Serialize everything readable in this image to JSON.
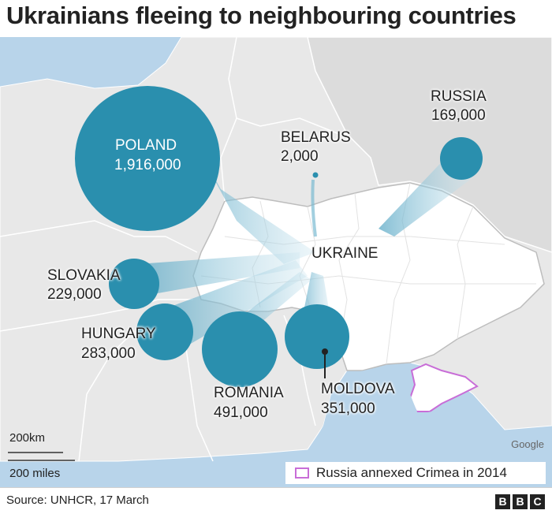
{
  "title": "Ukrainians fleeing to neighbouring countries",
  "countries": [
    {
      "key": "poland",
      "name": "POLAND",
      "value": "1,916,000",
      "refugees": 1916000,
      "label_inside": true
    },
    {
      "key": "russia",
      "name": "RUSSIA",
      "value": "169,000",
      "refugees": 169000,
      "label_inside": false
    },
    {
      "key": "belarus",
      "name": "BELARUS",
      "value": "2,000",
      "refugees": 2000,
      "label_inside": false
    },
    {
      "key": "slovakia",
      "name": "SLOVAKIA",
      "value": "229,000",
      "refugees": 229000,
      "label_inside": false
    },
    {
      "key": "hungary",
      "name": "HUNGARY",
      "value": "283,000",
      "refugees": 283000,
      "label_inside": false
    },
    {
      "key": "romania",
      "name": "ROMANIA",
      "value": "491,000",
      "refugees": 491000,
      "label_inside": false
    },
    {
      "key": "moldova",
      "name": "MOLDOVA",
      "value": "351,000",
      "refugees": 351000,
      "label_inside": false
    }
  ],
  "origin_label": "UKRAINE",
  "scale": {
    "km": "200km",
    "miles": "200 miles"
  },
  "legend": {
    "label": "Russia annexed Crimea in 2014",
    "color": "#c86dd7"
  },
  "attribution": "Google",
  "source": "Source: UNHCR, 17 March",
  "logo": [
    "B",
    "B",
    "C"
  ],
  "colors": {
    "circle": "#2a8fae",
    "land": "#e8e8e8",
    "ukraine": "#ffffff",
    "sea": "#b8d4ea",
    "flow": "#8fc7dc"
  }
}
